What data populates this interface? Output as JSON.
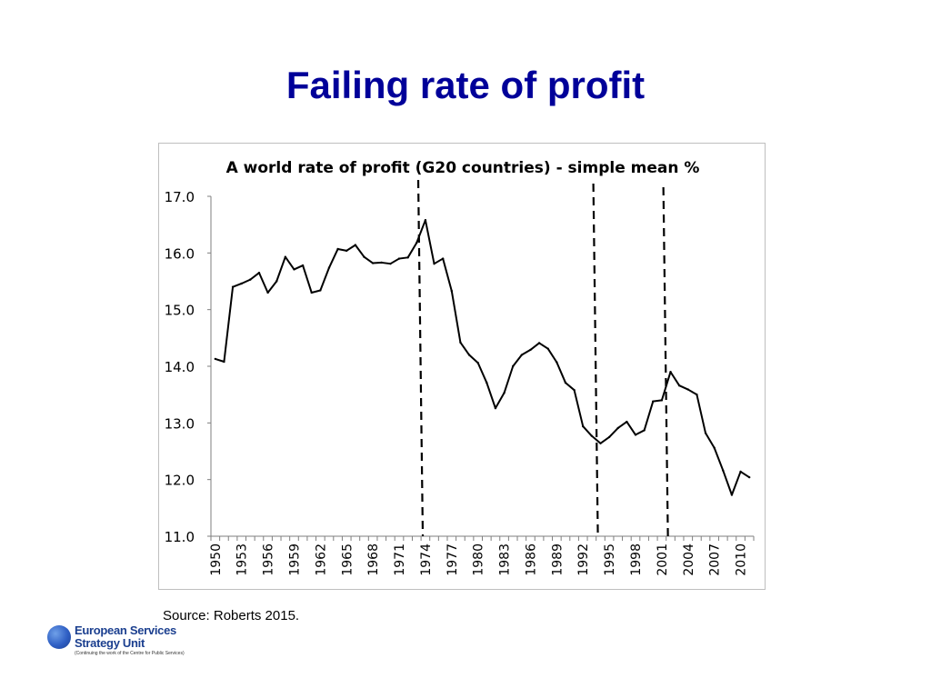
{
  "slide": {
    "title": "Failing rate of profit",
    "source": "Source: Roberts 2015."
  },
  "logo": {
    "line1": "European Services",
    "line2": "Strategy Unit",
    "tagline": "(Continuing the work of the Centre for Public Services)"
  },
  "chart_data": {
    "type": "line",
    "title": "A world rate of profit (G20 countries) - simple mean %",
    "xlabel": "",
    "ylabel": "",
    "ylim": [
      11.0,
      17.0
    ],
    "yticks": [
      "11.0",
      "12.0",
      "13.0",
      "14.0",
      "15.0",
      "16.0",
      "17.0"
    ],
    "xticks": [
      "1950",
      "1953",
      "1956",
      "1959",
      "1962",
      "1965",
      "1968",
      "1971",
      "1974",
      "1977",
      "1980",
      "1983",
      "1986",
      "1989",
      "1992",
      "1995",
      "1998",
      "2001",
      "2004",
      "2007",
      "2010"
    ],
    "x": [
      1950,
      1951,
      1952,
      1953,
      1954,
      1955,
      1956,
      1957,
      1958,
      1959,
      1960,
      1961,
      1962,
      1963,
      1964,
      1965,
      1966,
      1967,
      1968,
      1969,
      1970,
      1971,
      1972,
      1973,
      1974,
      1975,
      1976,
      1977,
      1978,
      1979,
      1980,
      1981,
      1982,
      1983,
      1984,
      1985,
      1986,
      1987,
      1988,
      1989,
      1990,
      1991,
      1992,
      1993,
      1994,
      1995,
      1996,
      1997,
      1998,
      1999,
      2000,
      2001,
      2002,
      2003,
      2004,
      2005,
      2006,
      2007,
      2008,
      2009,
      2010,
      2011
    ],
    "series": [
      {
        "values": [
          14.13,
          14.08,
          15.4,
          15.46,
          15.53,
          15.65,
          15.3,
          15.5,
          15.93,
          15.71,
          15.78,
          15.3,
          15.34,
          15.74,
          16.07,
          16.04,
          16.14,
          15.93,
          15.82,
          15.83,
          15.81,
          15.9,
          15.92,
          16.18,
          16.58,
          15.81,
          15.9,
          15.33,
          14.42,
          14.2,
          14.06,
          13.71,
          13.26,
          13.53,
          14.0,
          14.2,
          14.29,
          14.41,
          14.31,
          14.07,
          13.71,
          13.58,
          12.94,
          12.77,
          12.64,
          12.75,
          12.91,
          13.02,
          12.79,
          12.87,
          13.38,
          13.4,
          13.9,
          13.66,
          13.59,
          13.5,
          12.82,
          12.56,
          12.16,
          11.73,
          12.14,
          12.04
        ]
      }
    ],
    "vlines": [
      1974,
      1994,
      2002
    ],
    "color": "#000000",
    "grid": false
  }
}
